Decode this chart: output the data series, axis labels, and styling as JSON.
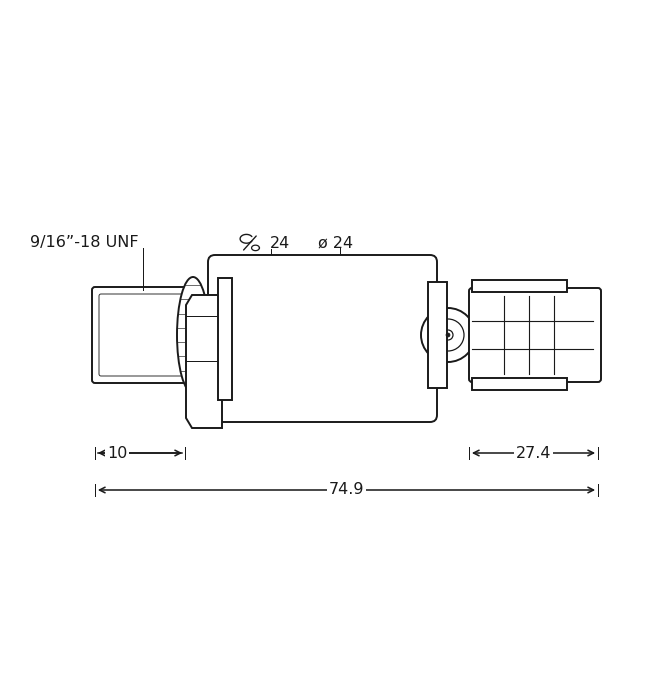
{
  "bg_color": "#ffffff",
  "line_color": "#1a1a1a",
  "lw": 1.4,
  "tlw": 0.9,
  "fig_width": 6.53,
  "fig_height": 7.0,
  "labels": {
    "thread": "9/16”-18 UNF",
    "wrench_num": "24",
    "diameter": "ø 24",
    "dim_10": "10",
    "dim_274": "27.4",
    "dim_749": "74.9"
  },
  "font_size": 11.5
}
